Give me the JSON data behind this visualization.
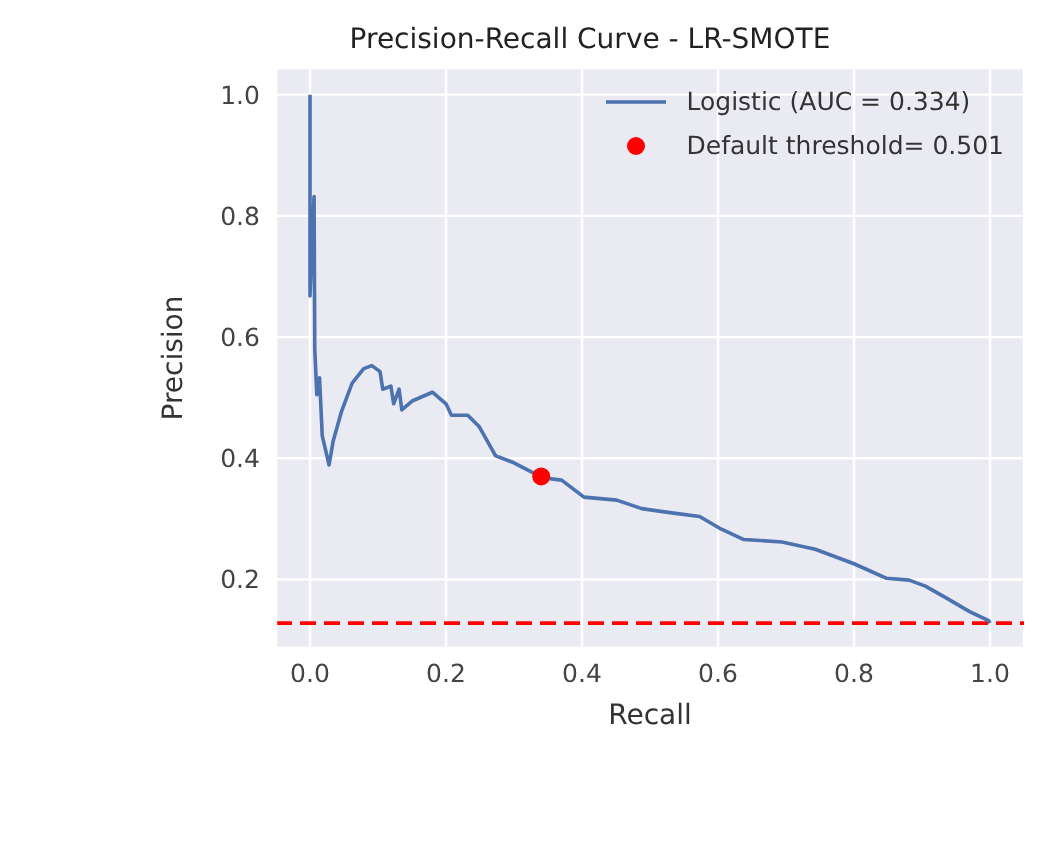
{
  "chart_data": {
    "type": "line",
    "title": "Precision-Recall Curve - LR-SMOTE",
    "xlabel": "Recall",
    "ylabel": "Precision",
    "xlim": [
      -0.05,
      1.05
    ],
    "ylim": [
      0.087,
      1.044
    ],
    "xticks": [
      {
        "value": 0,
        "label": "0.0"
      },
      0.2,
      0.4,
      0.6,
      0.8,
      {
        "value": 1,
        "label": "1.0"
      }
    ],
    "yticks": [
      0.2,
      0.4,
      0.6,
      0.8,
      {
        "value": 1,
        "label": "1.0"
      }
    ],
    "grid": true,
    "legend": "top right",
    "marker": "none",
    "line_style": "solid",
    "ref_lines": [
      {
        "axis": "y",
        "value": 0.128,
        "color": "#ff0000",
        "line_style": "dashed"
      }
    ],
    "series": [
      {
        "name": "Logistic (AUC = 0.334)",
        "color": "#4c72b0",
        "x": [
          0,
          0,
          0.006,
          0.007,
          0.01,
          0.014,
          0.018,
          0.022,
          0.028,
          0.034,
          0.046,
          0.062,
          0.079,
          0.091,
          0.103,
          0.107,
          0.119,
          0.123,
          0.131,
          0.135,
          0.151,
          0.18,
          0.2,
          0.208,
          0.22,
          0.232,
          0.249,
          0.273,
          0.297,
          0.342,
          0.37,
          0.403,
          0.451,
          0.488,
          0.532,
          0.573,
          0.605,
          0.638,
          0.694,
          0.743,
          0.8,
          0.848,
          0.881,
          0.905,
          0.938,
          0.97,
          0.998,
          1.0
        ],
        "values": [
          1.0,
          0.668,
          0.832,
          0.58,
          0.505,
          0.533,
          0.437,
          0.418,
          0.389,
          0.428,
          0.476,
          0.524,
          0.548,
          0.553,
          0.543,
          0.514,
          0.519,
          0.49,
          0.514,
          0.48,
          0.495,
          0.509,
          0.49,
          0.471,
          0.471,
          0.471,
          0.452,
          0.404,
          0.394,
          0.368,
          0.364,
          0.336,
          0.331,
          0.317,
          0.31,
          0.304,
          0.283,
          0.266,
          0.262,
          0.25,
          0.226,
          0.202,
          0.199,
          0.189,
          0.168,
          0.147,
          0.132,
          0.128
        ]
      },
      {
        "name": "Default threshold= 0.501",
        "type": "scatter",
        "marker": "circle",
        "color": "#ff0000",
        "x": [
          0.34
        ],
        "values": [
          0.37
        ]
      }
    ]
  }
}
